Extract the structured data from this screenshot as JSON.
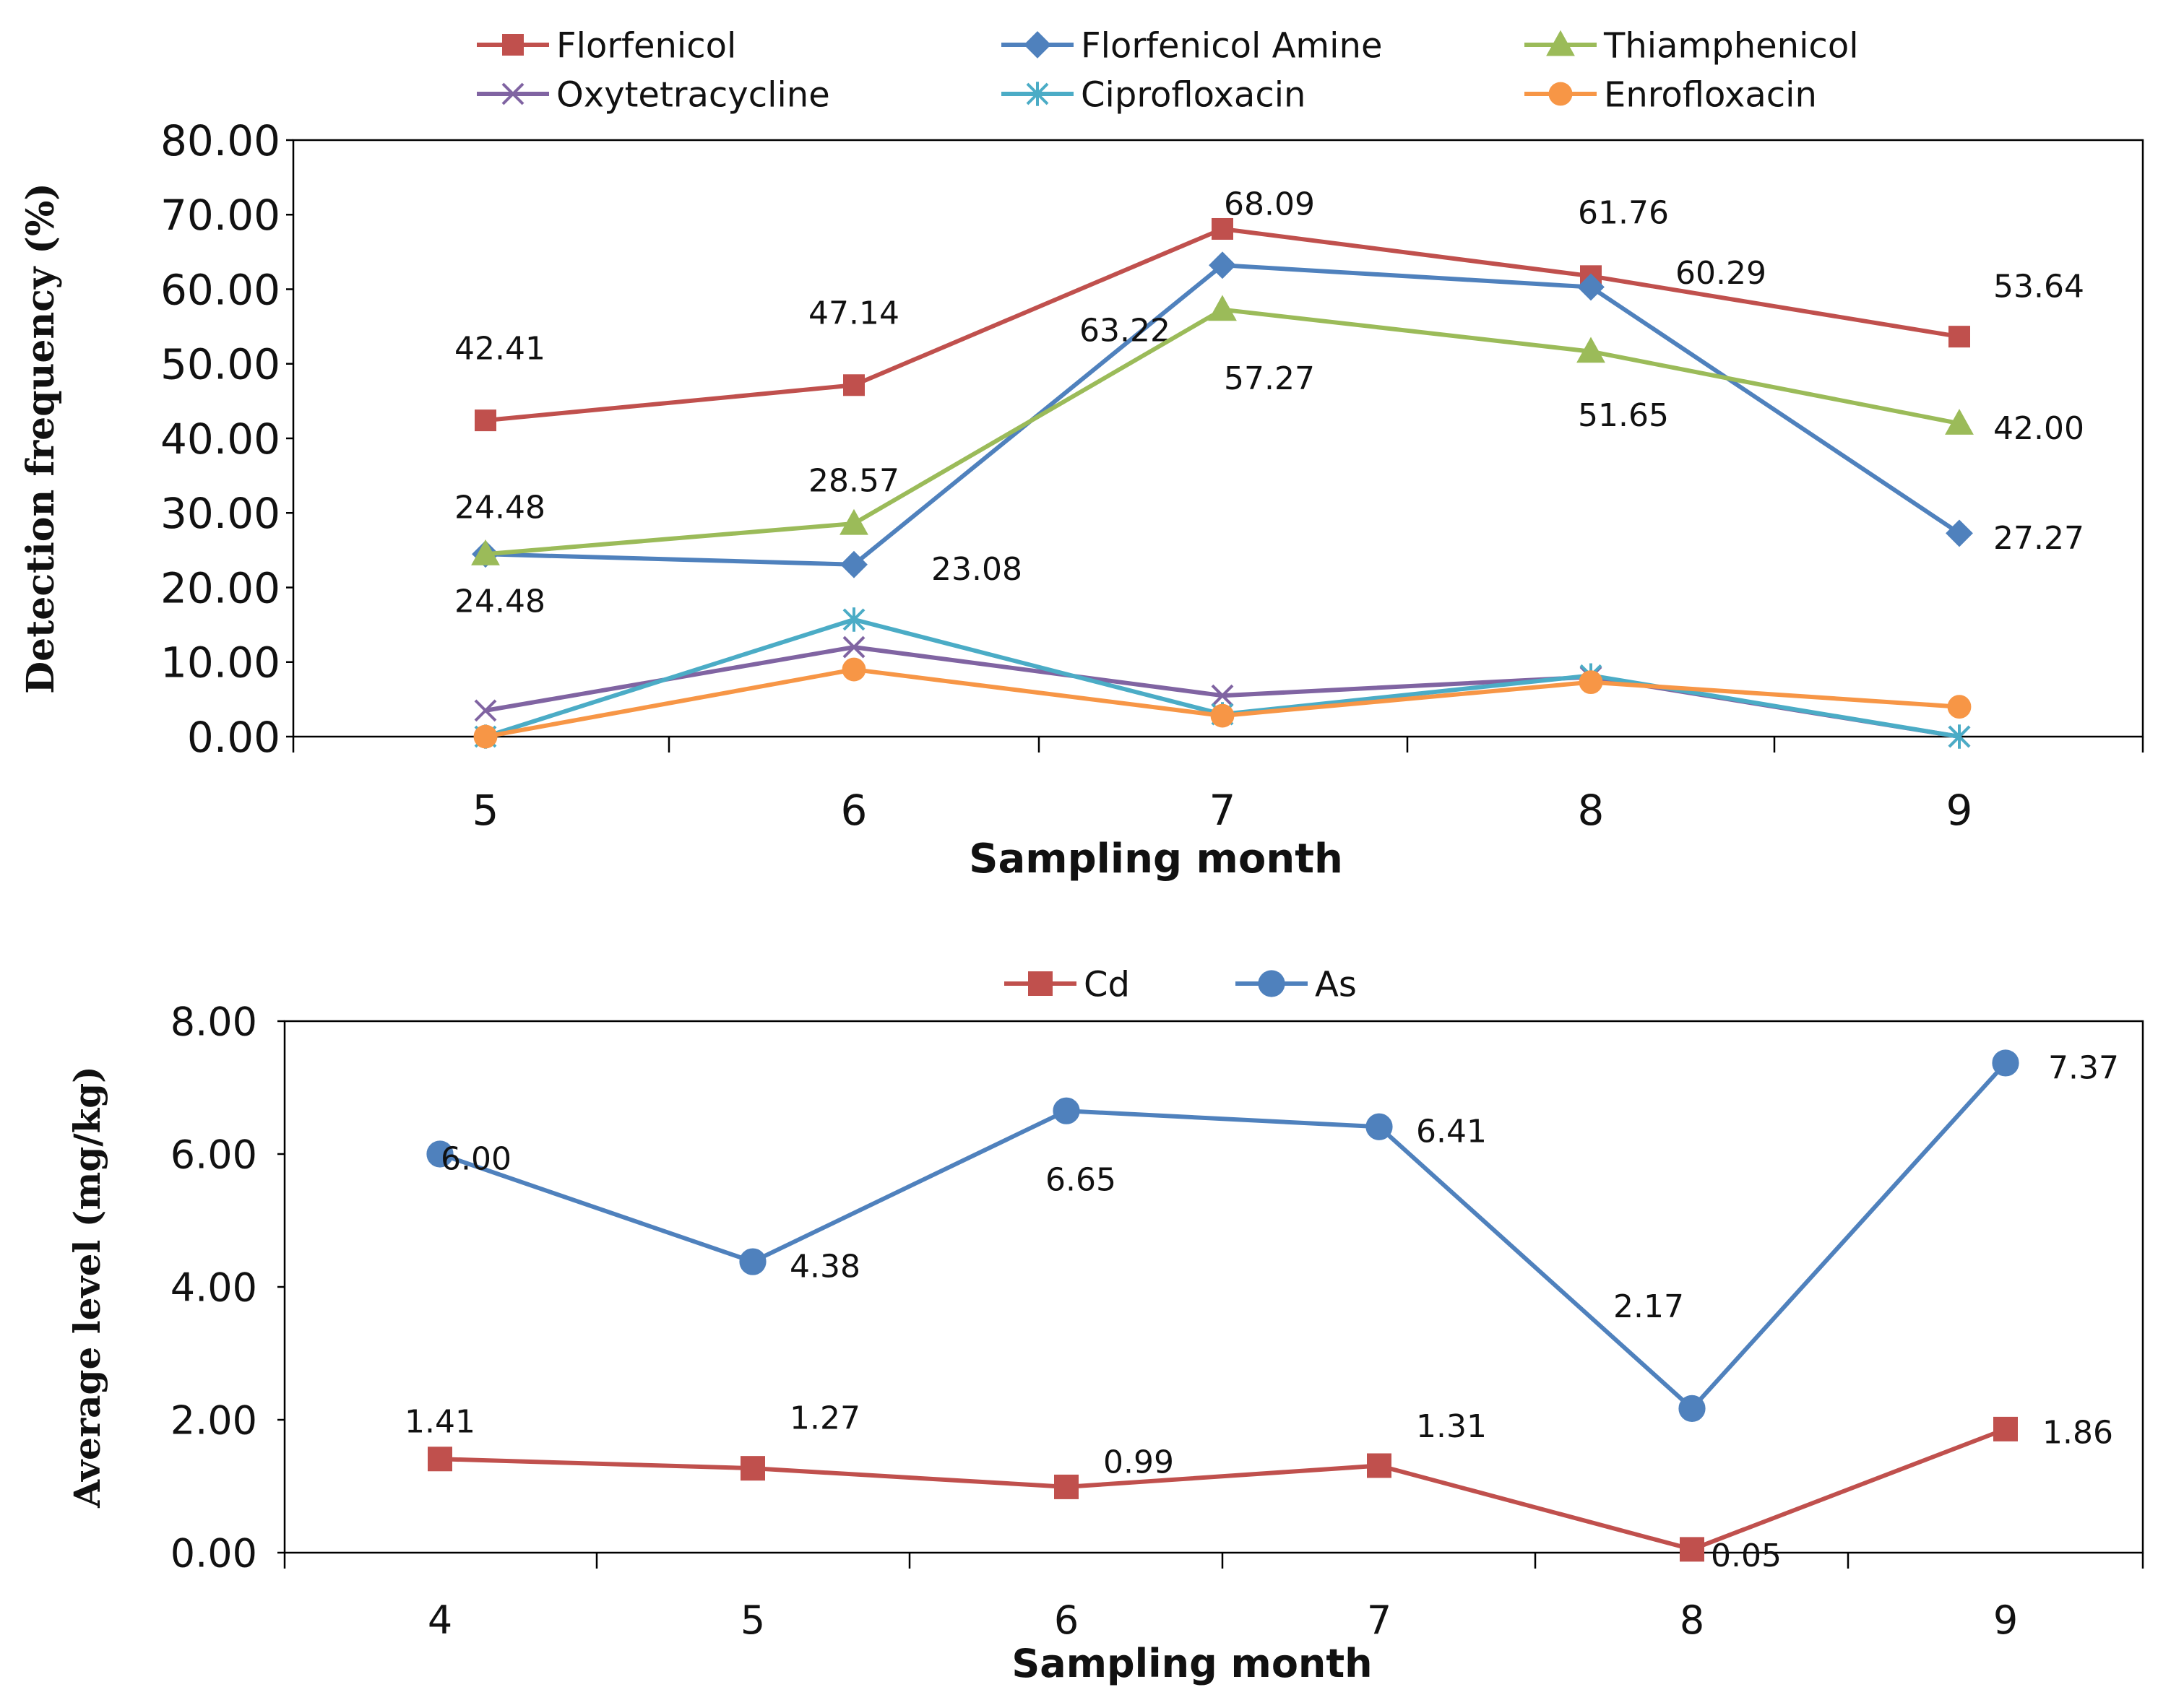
{
  "chart_data": [
    {
      "type": "line",
      "xlabel": "Sampling month",
      "ylabel": "Detection frequency (%)",
      "categories": [
        "5",
        "6",
        "7",
        "8",
        "9"
      ],
      "ylim": [
        0,
        80
      ],
      "yticks": [
        "0.00",
        "10.00",
        "20.00",
        "30.00",
        "40.00",
        "50.00",
        "60.00",
        "70.00",
        "80.00"
      ],
      "legend_position": "top",
      "series": [
        {
          "name": "Florfenicol",
          "color": "#C0504D",
          "marker": "square",
          "values": [
            42.41,
            47.14,
            68.09,
            61.76,
            53.64
          ],
          "labels": [
            "42.41",
            "47.14",
            "68.09",
            "61.76",
            "53.64"
          ]
        },
        {
          "name": "Florfenicol Amine",
          "color": "#4F81BD",
          "marker": "diamond",
          "values": [
            24.48,
            23.08,
            63.22,
            60.29,
            27.27
          ],
          "labels": [
            "24.48",
            "23.08",
            "63.22",
            "60.29",
            "27.27"
          ]
        },
        {
          "name": "Thiamphenicol",
          "color": "#9BBB59",
          "marker": "triangle",
          "values": [
            24.48,
            28.57,
            57.27,
            51.65,
            42.0
          ],
          "labels": [
            "24.48",
            "28.57",
            "57.27",
            "51.65",
            "42.00"
          ]
        },
        {
          "name": "Oxytetracycline",
          "color": "#8064A2",
          "marker": "x",
          "values": [
            3.5,
            12.0,
            5.5,
            8.0,
            0.0
          ]
        },
        {
          "name": "Ciprofloxacin",
          "color": "#4BACC6",
          "marker": "star",
          "values": [
            0.0,
            15.7,
            3.0,
            8.2,
            0.0
          ]
        },
        {
          "name": "Enrofloxacin",
          "color": "#F79646",
          "marker": "circle",
          "values": [
            0.0,
            9.0,
            2.8,
            7.3,
            4.0
          ]
        }
      ]
    },
    {
      "type": "line",
      "xlabel": "Sampling month",
      "ylabel": "Average level (mg/kg)",
      "categories": [
        "4",
        "5",
        "6",
        "7",
        "8",
        "9"
      ],
      "ylim": [
        0,
        8
      ],
      "yticks": [
        "0.00",
        "2.00",
        "4.00",
        "6.00",
        "8.00"
      ],
      "legend_position": "top",
      "series": [
        {
          "name": "Cd",
          "color": "#C0504D",
          "marker": "square",
          "values": [
            1.41,
            1.27,
            0.99,
            1.31,
            0.05,
            1.86
          ],
          "labels": [
            "1.41",
            "1.27",
            "0.99",
            "1.31",
            "0.05",
            "1.86"
          ]
        },
        {
          "name": "As",
          "color": "#4F81BD",
          "marker": "circle",
          "values": [
            6.0,
            4.38,
            6.65,
            6.41,
            2.17,
            7.37
          ],
          "labels": [
            "6.00",
            "4.38",
            "6.65",
            "6.41",
            "2.17",
            "7.37"
          ]
        }
      ]
    }
  ]
}
